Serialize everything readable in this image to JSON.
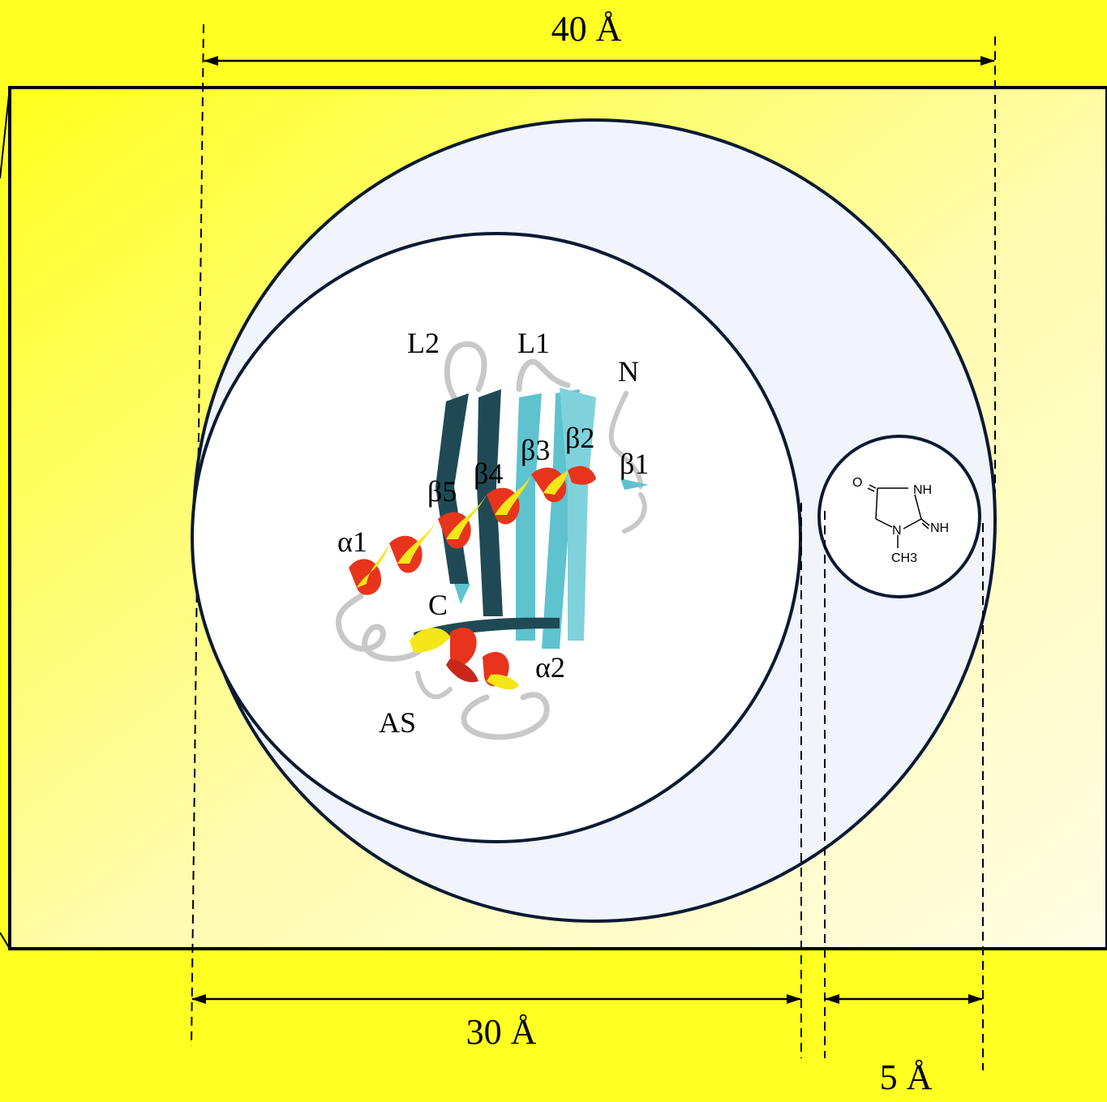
{
  "colors": {
    "background": "#ffff22",
    "panel_light": "#fffde0",
    "outer_circle": "#f1f5fb",
    "outline": "#0b1a33",
    "helix_red": "#e8341c",
    "helix_yellow": "#f5e61a",
    "strand_cyan": "#5ec3cf",
    "strand_dark": "#1f4a55",
    "loop_gray": "#c8c8c8"
  },
  "dimensions": {
    "top": "40 Å",
    "bottom_left": "30 Å",
    "bottom_right": "5 Å"
  },
  "protein_labels": {
    "l2": "L2",
    "l1": "L1",
    "n": "N",
    "b2": "β2",
    "b3": "β3",
    "b4": "β4",
    "b5": "β5",
    "b1": "β1",
    "a1": "α1",
    "c": "C",
    "a2": "α2",
    "as": "AS"
  },
  "molecule": {
    "o": "O",
    "nh_top": "NH",
    "nh_right": "NH",
    "n": "N",
    "ch3": "CH3"
  }
}
